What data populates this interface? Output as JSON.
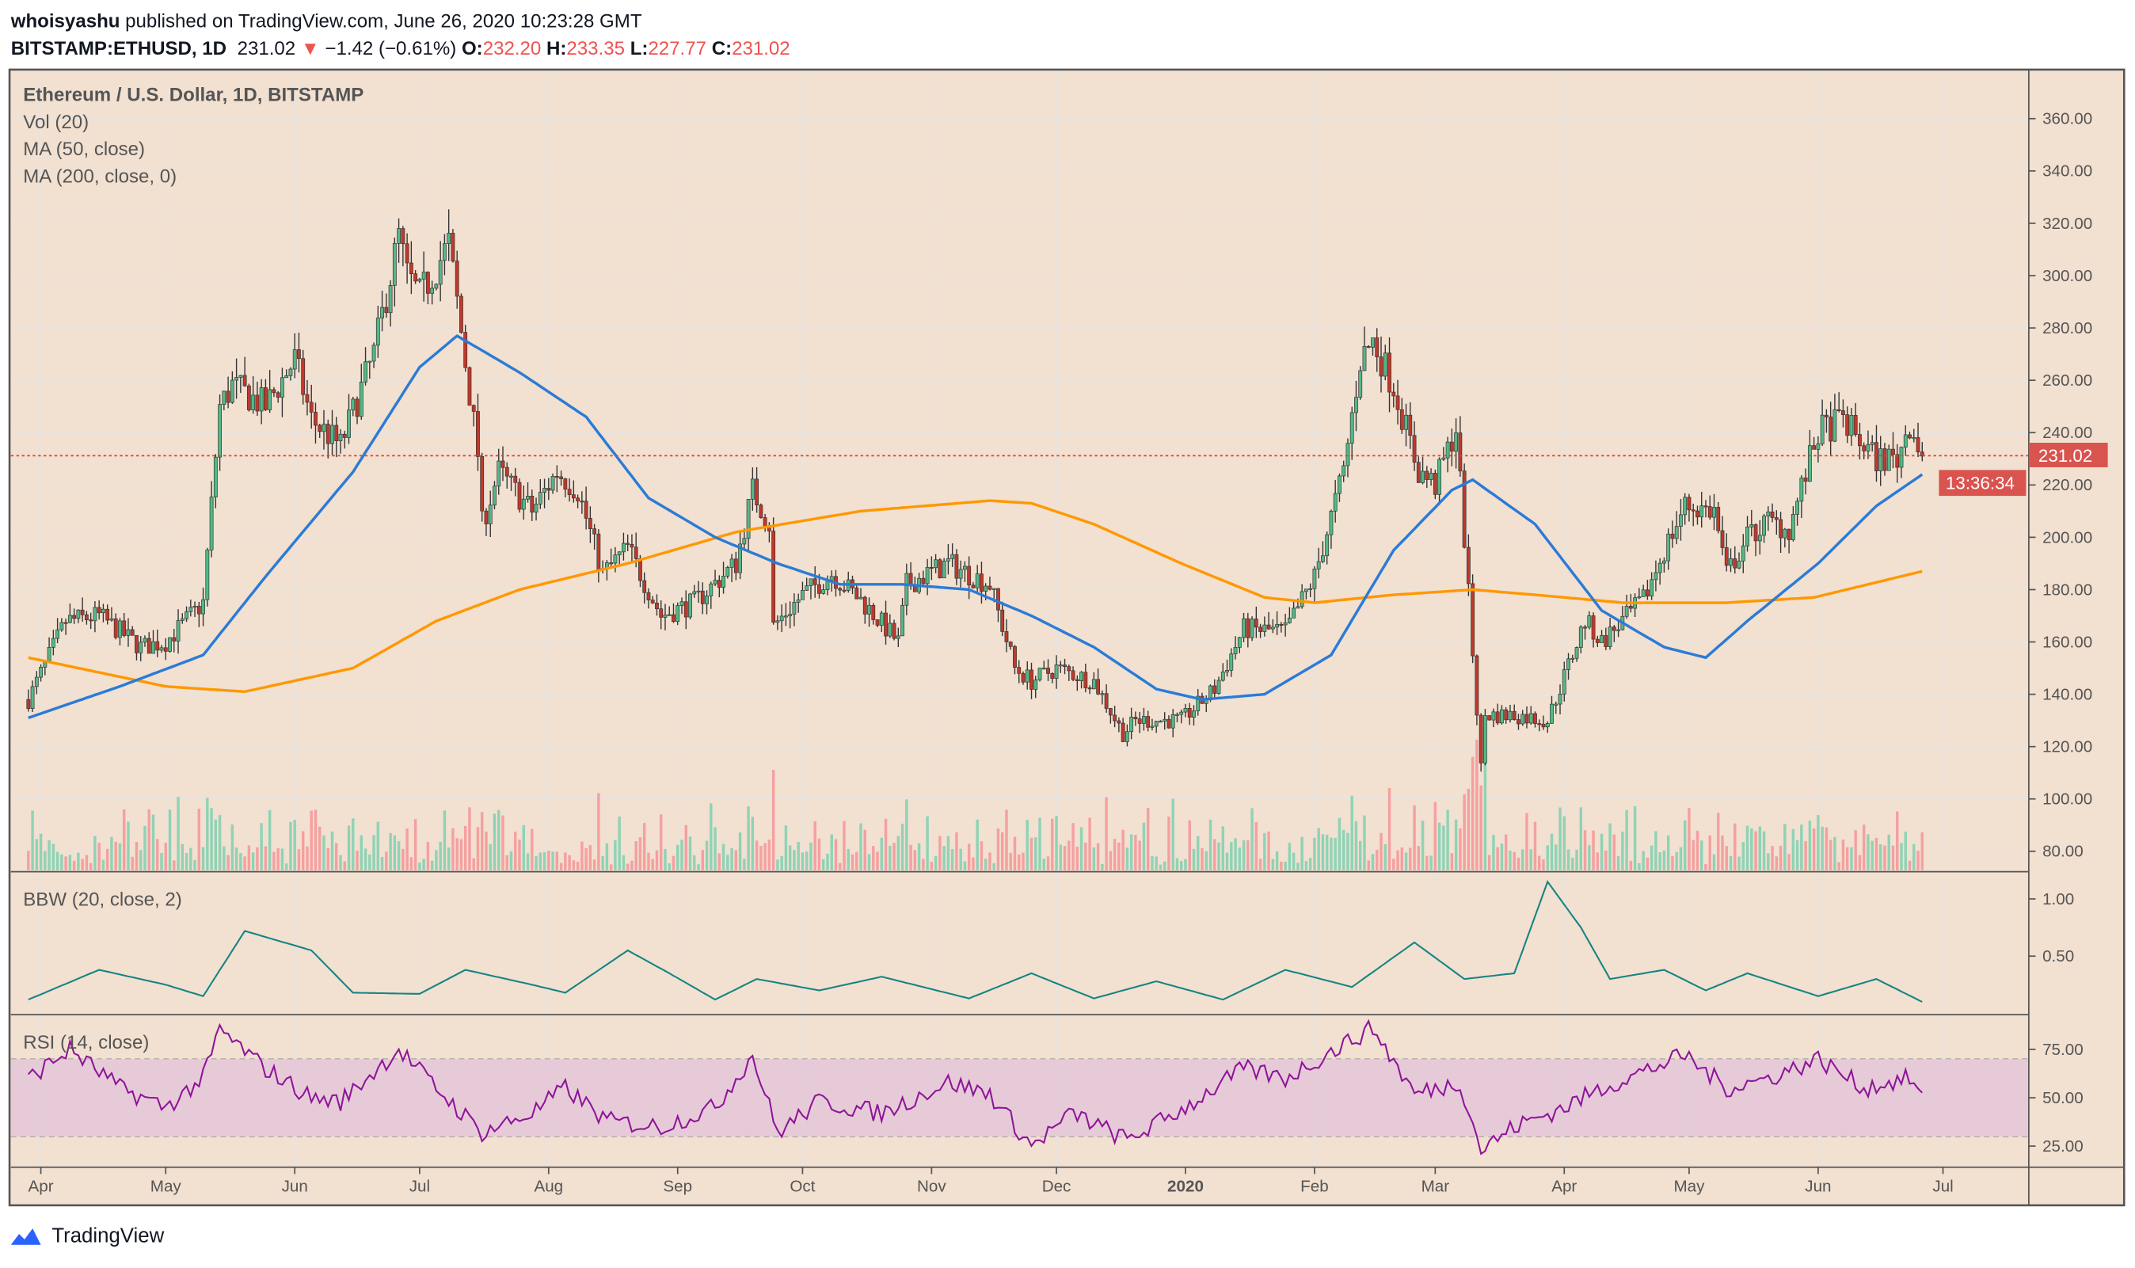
{
  "header": {
    "author": "whoisyashu",
    "published": " published on TradingView.com, June 26, 2020 10:23:28 GMT",
    "symbol": "BITSTAMP:ETHUSD, 1D",
    "last": "231.02",
    "change": "−1.42 (−0.61%)",
    "o_label": "O:",
    "o": "232.20",
    "h_label": "H:",
    "h": "233.35",
    "l_label": "L:",
    "l": "227.77",
    "c_label": "C:",
    "c": "231.02"
  },
  "legend": {
    "title": "Ethereum / U.S. Dollar, 1D, BITSTAMP",
    "vol": "Vol (20)",
    "ma50": "MA (50, close)",
    "ma200": "MA (200, close, 0)",
    "bbw": "BBW (20, close, 2)",
    "rsi": "RSI (14, close)"
  },
  "price_tag": "231.02",
  "countdown": "13:36:34",
  "branding": "TradingView",
  "colors": {
    "background": "#f2e0d0",
    "up": "#53b987",
    "down": "#eb4d5c",
    "ma50": "#2b7bd6",
    "ma200": "#ff9800",
    "bbw": "#138484",
    "rsi": "#8e1599",
    "rsi_band": "#e6c8d8",
    "price_tag": "#d9534f"
  },
  "chart_data": [
    {
      "type": "candlestick",
      "title": "Ethereum / U.S. Dollar, 1D, BITSTAMP",
      "ylim": [
        72,
        372
      ],
      "y_ticks": [
        "360.00",
        "340.00",
        "320.00",
        "300.00",
        "280.00",
        "260.00",
        "240.00",
        "220.00",
        "200.00",
        "180.00",
        "160.00",
        "140.00",
        "120.00",
        "100.00",
        "80.00"
      ],
      "x_ticks": [
        {
          "date": "2019-04-01",
          "label": "Apr"
        },
        {
          "date": "2019-05-01",
          "label": "May"
        },
        {
          "date": "2019-06-01",
          "label": "Jun"
        },
        {
          "date": "2019-07-01",
          "label": "Jul"
        },
        {
          "date": "2019-08-01",
          "label": "Aug"
        },
        {
          "date": "2019-09-01",
          "label": "Sep"
        },
        {
          "date": "2019-10-01",
          "label": "Oct"
        },
        {
          "date": "2019-11-01",
          "label": "Nov"
        },
        {
          "date": "2019-12-01",
          "label": "Dec"
        },
        {
          "date": "2020-01-01",
          "label": "2020"
        },
        {
          "date": "2020-02-01",
          "label": "Feb"
        },
        {
          "date": "2020-03-01",
          "label": "Mar"
        },
        {
          "date": "2020-04-01",
          "label": "Apr"
        },
        {
          "date": "2020-05-01",
          "label": "May"
        },
        {
          "date": "2020-06-01",
          "label": "Jun"
        },
        {
          "date": "2020-07-01",
          "label": "Jul"
        }
      ],
      "close_approx": [
        [
          "2019-03-29",
          138
        ],
        [
          "2019-04-07",
          168
        ],
        [
          "2019-04-15",
          170
        ],
        [
          "2019-04-25",
          158
        ],
        [
          "2019-05-01",
          160
        ],
        [
          "2019-05-10",
          175
        ],
        [
          "2019-05-14",
          250
        ],
        [
          "2019-05-17",
          258
        ],
        [
          "2019-05-25",
          250
        ],
        [
          "2019-06-01",
          268
        ],
        [
          "2019-06-05",
          245
        ],
        [
          "2019-06-12",
          235
        ],
        [
          "2019-06-20",
          270
        ],
        [
          "2019-06-26",
          315
        ],
        [
          "2019-06-28",
          300
        ],
        [
          "2019-07-01",
          292
        ],
        [
          "2019-07-08",
          312
        ],
        [
          "2019-07-10",
          290
        ],
        [
          "2019-07-15",
          232
        ],
        [
          "2019-07-16",
          205
        ],
        [
          "2019-07-20",
          225
        ],
        [
          "2019-07-28",
          210
        ],
        [
          "2019-08-03",
          225
        ],
        [
          "2019-08-08",
          218
        ],
        [
          "2019-08-14",
          186
        ],
        [
          "2019-08-20",
          196
        ],
        [
          "2019-08-28",
          170
        ],
        [
          "2019-09-05",
          175
        ],
        [
          "2019-09-15",
          190
        ],
        [
          "2019-09-19",
          218
        ],
        [
          "2019-09-23",
          205
        ],
        [
          "2019-09-24",
          166
        ],
        [
          "2019-10-01",
          178
        ],
        [
          "2019-10-08",
          186
        ],
        [
          "2019-10-15",
          176
        ],
        [
          "2019-10-24",
          160
        ],
        [
          "2019-10-26",
          182
        ],
        [
          "2019-11-05",
          190
        ],
        [
          "2019-11-15",
          182
        ],
        [
          "2019-11-21",
          150
        ],
        [
          "2019-11-25",
          145
        ],
        [
          "2019-12-01",
          150
        ],
        [
          "2019-12-10",
          145
        ],
        [
          "2019-12-17",
          125
        ],
        [
          "2019-12-20",
          130
        ],
        [
          "2019-12-31",
          130
        ],
        [
          "2020-01-08",
          142
        ],
        [
          "2020-01-15",
          165
        ],
        [
          "2020-01-25",
          164
        ],
        [
          "2020-02-01",
          185
        ],
        [
          "2020-02-08",
          225
        ],
        [
          "2020-02-12",
          268
        ],
        [
          "2020-02-15",
          275
        ],
        [
          "2020-02-20",
          258
        ],
        [
          "2020-02-26",
          225
        ],
        [
          "2020-03-01",
          220
        ],
        [
          "2020-03-06",
          242
        ],
        [
          "2020-03-08",
          200
        ],
        [
          "2020-03-12",
          112
        ],
        [
          "2020-03-13",
          132
        ],
        [
          "2020-03-20",
          132
        ],
        [
          "2020-03-28",
          130
        ],
        [
          "2020-04-06",
          168
        ],
        [
          "2020-04-10",
          160
        ],
        [
          "2020-04-20",
          176
        ],
        [
          "2020-04-25",
          195
        ],
        [
          "2020-04-30",
          212
        ],
        [
          "2020-05-07",
          210
        ],
        [
          "2020-05-10",
          186
        ],
        [
          "2020-05-15",
          200
        ],
        [
          "2020-05-20",
          206
        ],
        [
          "2020-05-25",
          203
        ],
        [
          "2020-06-01",
          240
        ],
        [
          "2020-06-07",
          245
        ],
        [
          "2020-06-12",
          235
        ],
        [
          "2020-06-15",
          230
        ],
        [
          "2020-06-20",
          230
        ],
        [
          "2020-06-23",
          244
        ],
        [
          "2020-06-26",
          231.02
        ]
      ],
      "ma50_approx": [
        [
          "2019-03-29",
          131
        ],
        [
          "2019-04-20",
          143
        ],
        [
          "2019-05-10",
          155
        ],
        [
          "2019-05-25",
          185
        ],
        [
          "2019-06-15",
          225
        ],
        [
          "2019-07-01",
          265
        ],
        [
          "2019-07-10",
          277
        ],
        [
          "2019-07-25",
          263
        ],
        [
          "2019-08-10",
          246
        ],
        [
          "2019-08-25",
          215
        ],
        [
          "2019-09-10",
          200
        ],
        [
          "2019-09-25",
          190
        ],
        [
          "2019-10-10",
          182
        ],
        [
          "2019-10-25",
          182
        ],
        [
          "2019-11-10",
          180
        ],
        [
          "2019-11-25",
          170
        ],
        [
          "2019-12-10",
          158
        ],
        [
          "2019-12-25",
          142
        ],
        [
          "2020-01-05",
          138
        ],
        [
          "2020-01-20",
          140
        ],
        [
          "2020-02-05",
          155
        ],
        [
          "2020-02-20",
          195
        ],
        [
          "2020-03-05",
          218
        ],
        [
          "2020-03-10",
          222
        ],
        [
          "2020-03-25",
          205
        ],
        [
          "2020-04-10",
          172
        ],
        [
          "2020-04-25",
          158
        ],
        [
          "2020-05-05",
          154
        ],
        [
          "2020-05-15",
          168
        ],
        [
          "2020-06-01",
          190
        ],
        [
          "2020-06-15",
          212
        ],
        [
          "2020-06-26",
          224
        ]
      ],
      "ma200_approx": [
        [
          "2019-03-29",
          154
        ],
        [
          "2019-05-01",
          143
        ],
        [
          "2019-05-20",
          141
        ],
        [
          "2019-06-15",
          150
        ],
        [
          "2019-07-05",
          168
        ],
        [
          "2019-07-25",
          180
        ],
        [
          "2019-08-20",
          190
        ],
        [
          "2019-09-15",
          202
        ],
        [
          "2019-10-15",
          210
        ],
        [
          "2019-11-15",
          214
        ],
        [
          "2019-11-25",
          213
        ],
        [
          "2019-12-10",
          205
        ],
        [
          "2019-12-31",
          190
        ],
        [
          "2020-01-20",
          177
        ],
        [
          "2020-02-01",
          175
        ],
        [
          "2020-02-20",
          178
        ],
        [
          "2020-03-10",
          180
        ],
        [
          "2020-03-25",
          178
        ],
        [
          "2020-04-15",
          175
        ],
        [
          "2020-05-10",
          175
        ],
        [
          "2020-05-31",
          177
        ],
        [
          "2020-06-26",
          187
        ]
      ]
    },
    {
      "type": "line",
      "title": "BBW (20, close, 2)",
      "y_ticks": [
        "1.00",
        "0.50"
      ],
      "values_approx": [
        [
          "2019-03-29",
          0.12
        ],
        [
          "2019-04-15",
          0.38
        ],
        [
          "2019-05-01",
          0.25
        ],
        [
          "2019-05-10",
          0.15
        ],
        [
          "2019-05-20",
          0.72
        ],
        [
          "2019-06-05",
          0.55
        ],
        [
          "2019-06-15",
          0.18
        ],
        [
          "2019-07-01",
          0.17
        ],
        [
          "2019-07-12",
          0.38
        ],
        [
          "2019-07-28",
          0.25
        ],
        [
          "2019-08-05",
          0.18
        ],
        [
          "2019-08-20",
          0.55
        ],
        [
          "2019-08-30",
          0.35
        ],
        [
          "2019-09-10",
          0.12
        ],
        [
          "2019-09-20",
          0.3
        ],
        [
          "2019-10-05",
          0.2
        ],
        [
          "2019-10-20",
          0.32
        ],
        [
          "2019-11-10",
          0.13
        ],
        [
          "2019-11-25",
          0.35
        ],
        [
          "2019-12-10",
          0.13
        ],
        [
          "2019-12-25",
          0.28
        ],
        [
          "2020-01-10",
          0.12
        ],
        [
          "2020-01-25",
          0.38
        ],
        [
          "2020-02-10",
          0.23
        ],
        [
          "2020-02-25",
          0.62
        ],
        [
          "2020-03-08",
          0.3
        ],
        [
          "2020-03-20",
          0.35
        ],
        [
          "2020-03-28",
          1.15
        ],
        [
          "2020-04-05",
          0.75
        ],
        [
          "2020-04-12",
          0.3
        ],
        [
          "2020-04-25",
          0.38
        ],
        [
          "2020-05-05",
          0.2
        ],
        [
          "2020-05-15",
          0.35
        ],
        [
          "2020-06-01",
          0.15
        ],
        [
          "2020-06-15",
          0.3
        ],
        [
          "2020-06-26",
          0.1
        ]
      ]
    },
    {
      "type": "line",
      "title": "RSI (14, close)",
      "y_ticks": [
        "75.00",
        "50.00",
        "25.00"
      ],
      "bands": [
        70,
        30
      ],
      "values_approx": [
        [
          "2019-03-29",
          60
        ],
        [
          "2019-04-08",
          75
        ],
        [
          "2019-04-20",
          55
        ],
        [
          "2019-05-01",
          45
        ],
        [
          "2019-05-10",
          60
        ],
        [
          "2019-05-14",
          85
        ],
        [
          "2019-05-25",
          65
        ],
        [
          "2019-06-05",
          50
        ],
        [
          "2019-06-12",
          48
        ],
        [
          "2019-06-26",
          75
        ],
        [
          "2019-07-05",
          55
        ],
        [
          "2019-07-16",
          32
        ],
        [
          "2019-07-28",
          42
        ],
        [
          "2019-08-05",
          55
        ],
        [
          "2019-08-15",
          38
        ],
        [
          "2019-08-28",
          35
        ],
        [
          "2019-09-10",
          45
        ],
        [
          "2019-09-19",
          72
        ],
        [
          "2019-09-25",
          32
        ],
        [
          "2019-10-05",
          48
        ],
        [
          "2019-10-20",
          42
        ],
        [
          "2019-11-05",
          58
        ],
        [
          "2019-11-15",
          52
        ],
        [
          "2019-11-25",
          25
        ],
        [
          "2019-12-05",
          42
        ],
        [
          "2019-12-18",
          28
        ],
        [
          "2020-01-01",
          45
        ],
        [
          "2020-01-15",
          65
        ],
        [
          "2020-01-25",
          60
        ],
        [
          "2020-02-10",
          80
        ],
        [
          "2020-02-15",
          86
        ],
        [
          "2020-02-25",
          52
        ],
        [
          "2020-03-07",
          58
        ],
        [
          "2020-03-12",
          23
        ],
        [
          "2020-03-20",
          35
        ],
        [
          "2020-04-01",
          45
        ],
        [
          "2020-04-10",
          55
        ],
        [
          "2020-04-30",
          72
        ],
        [
          "2020-05-10",
          55
        ],
        [
          "2020-05-20",
          60
        ],
        [
          "2020-06-01",
          70
        ],
        [
          "2020-06-12",
          55
        ],
        [
          "2020-06-23",
          60
        ],
        [
          "2020-06-26",
          50
        ]
      ]
    }
  ]
}
